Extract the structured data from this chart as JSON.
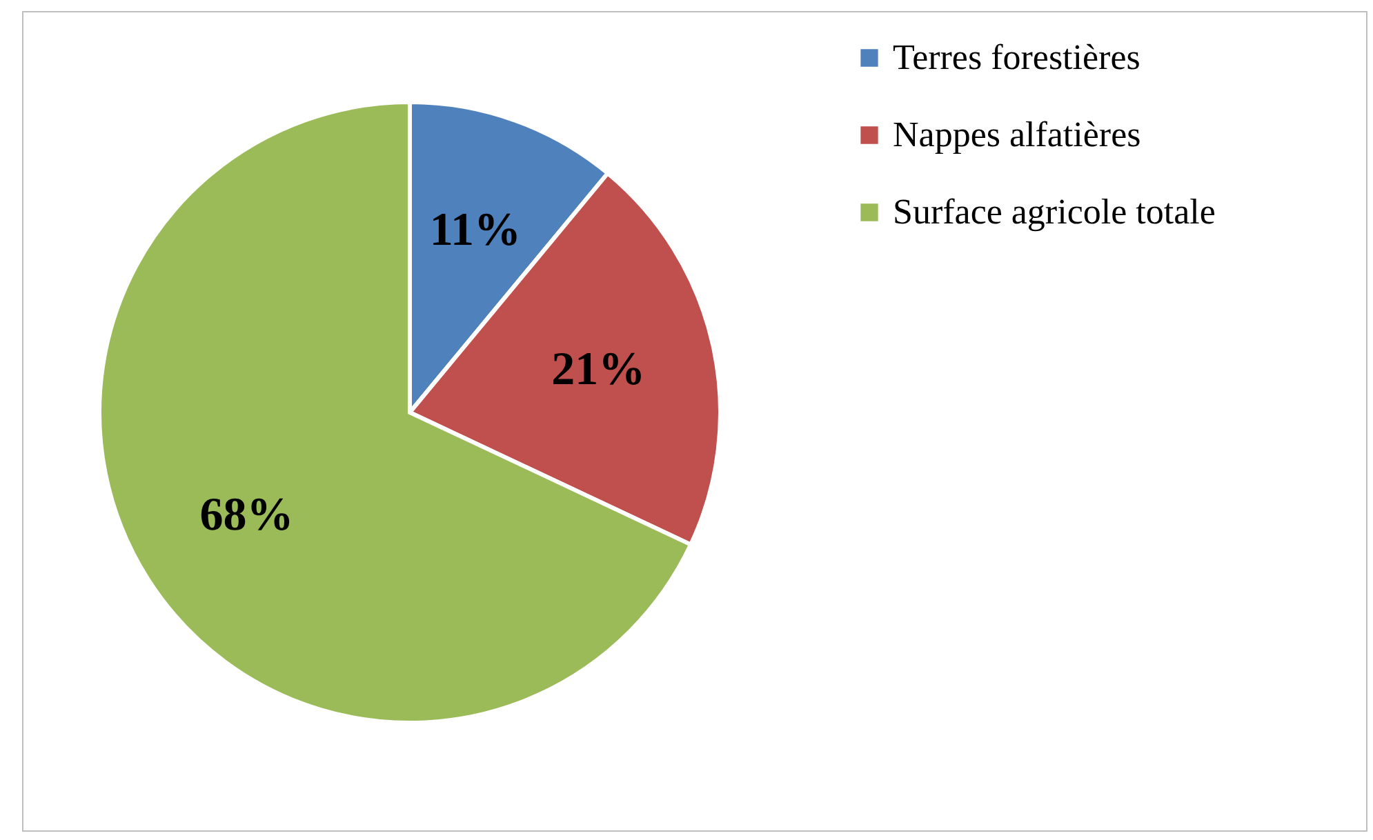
{
  "chart_data": {
    "type": "pie",
    "categories": [
      "Terres forestières",
      "Nappes alfatières",
      "Surface agricole totale"
    ],
    "values": [
      11,
      21,
      68
    ],
    "colors": [
      "#4f81bd",
      "#c0504d",
      "#9bbb59"
    ],
    "value_labels": [
      "11%",
      "21%",
      "68%"
    ],
    "legend": "right"
  }
}
